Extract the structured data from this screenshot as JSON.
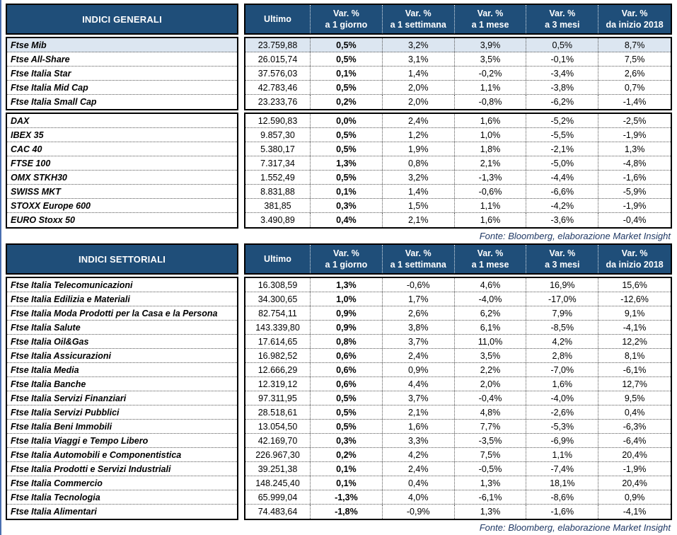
{
  "source_note": "Fonte: Bloomberg, elaborazione Market Insight",
  "column_headers": {
    "ultimo": "Ultimo",
    "var_label": "Var. %",
    "periods": [
      "a 1 giorno",
      "a 1 settimana",
      "a 1 mese",
      "a 3 mesi",
      "da inizio 2018"
    ]
  },
  "colors": {
    "header_bg": "#1f4e79",
    "highlight_row": "#dce6f1",
    "page_edge": "#4a6fb0",
    "source_text": "#1f3864"
  },
  "tables": [
    {
      "title": "INDICI GENERALI",
      "groups": [
        {
          "rows": [
            {
              "label": "Ftse Mib",
              "highlight": true,
              "values": [
                "23.759,88",
                "0,5%",
                "3,2%",
                "3,9%",
                "0,5%",
                "8,7%"
              ]
            },
            {
              "label": "Ftse All-Share",
              "values": [
                "26.015,74",
                "0,5%",
                "3,1%",
                "3,5%",
                "-0,1%",
                "7,5%"
              ]
            },
            {
              "label": "Ftse Italia Star",
              "values": [
                "37.576,03",
                "0,1%",
                "1,4%",
                "-0,2%",
                "-3,4%",
                "2,6%"
              ]
            },
            {
              "label": "Ftse Italia Mid Cap",
              "values": [
                "42.783,46",
                "0,5%",
                "2,0%",
                "1,1%",
                "-3,8%",
                "0,7%"
              ]
            },
            {
              "label": "Ftse Italia Small Cap",
              "values": [
                "23.233,76",
                "0,2%",
                "2,0%",
                "-0,8%",
                "-6,2%",
                "-1,4%"
              ]
            }
          ]
        },
        {
          "rows": [
            {
              "label": "DAX",
              "values": [
                "12.590,83",
                "0,0%",
                "2,4%",
                "1,6%",
                "-5,2%",
                "-2,5%"
              ]
            },
            {
              "label": "IBEX 35",
              "values": [
                "9.857,30",
                "0,5%",
                "1,2%",
                "1,0%",
                "-5,5%",
                "-1,9%"
              ]
            },
            {
              "label": "CAC 40",
              "values": [
                "5.380,17",
                "0,5%",
                "1,9%",
                "1,8%",
                "-2,1%",
                "1,3%"
              ]
            },
            {
              "label": "FTSE 100",
              "values": [
                "7.317,34",
                "1,3%",
                "0,8%",
                "2,1%",
                "-5,0%",
                "-4,8%"
              ]
            },
            {
              "label": "OMX STKH30",
              "values": [
                "1.552,49",
                "0,5%",
                "3,2%",
                "-1,3%",
                "-4,4%",
                "-1,6%"
              ]
            },
            {
              "label": "SWISS MKT",
              "values": [
                "8.831,88",
                "0,1%",
                "1,4%",
                "-0,6%",
                "-6,6%",
                "-5,9%"
              ]
            },
            {
              "label": "STOXX Europe 600",
              "values": [
                "381,85",
                "0,3%",
                "1,5%",
                "1,1%",
                "-4,2%",
                "-1,9%"
              ]
            },
            {
              "label": "EURO Stoxx 50",
              "values": [
                "3.490,89",
                "0,4%",
                "2,1%",
                "1,6%",
                "-3,6%",
                "-0,4%"
              ]
            }
          ]
        }
      ]
    },
    {
      "title": "INDICI SETTORIALI",
      "groups": [
        {
          "rows": [
            {
              "label": "Ftse Italia Telecomunicazioni",
              "values": [
                "16.308,59",
                "1,3%",
                "-0,6%",
                "4,6%",
                "16,9%",
                "15,6%"
              ]
            },
            {
              "label": "Ftse Italia Edilizia e Materiali",
              "values": [
                "34.300,65",
                "1,0%",
                "1,7%",
                "-4,0%",
                "-17,0%",
                "-12,6%"
              ]
            },
            {
              "label": "Ftse Italia Moda Prodotti per la Casa e la Persona",
              "values": [
                "82.754,11",
                "0,9%",
                "2,6%",
                "6,2%",
                "7,9%",
                "9,1%"
              ]
            },
            {
              "label": "Ftse Italia Salute",
              "values": [
                "143.339,80",
                "0,9%",
                "3,8%",
                "6,1%",
                "-8,5%",
                "-4,1%"
              ]
            },
            {
              "label": "Ftse Italia Oil&Gas",
              "values": [
                "17.614,65",
                "0,8%",
                "3,7%",
                "11,0%",
                "4,2%",
                "12,2%"
              ]
            },
            {
              "label": "Ftse Italia Assicurazioni",
              "values": [
                "16.982,52",
                "0,6%",
                "2,4%",
                "3,5%",
                "2,8%",
                "8,1%"
              ]
            },
            {
              "label": "Ftse Italia Media",
              "values": [
                "12.666,29",
                "0,6%",
                "0,9%",
                "2,2%",
                "-7,0%",
                "-6,1%"
              ]
            },
            {
              "label": "Ftse Italia Banche",
              "values": [
                "12.319,12",
                "0,6%",
                "4,4%",
                "2,0%",
                "1,6%",
                "12,7%"
              ]
            },
            {
              "label": "Ftse Italia Servizi Finanziari",
              "values": [
                "97.311,95",
                "0,5%",
                "3,7%",
                "-0,4%",
                "-4,0%",
                "9,5%"
              ]
            },
            {
              "label": "Ftse Italia Servizi Pubblici",
              "values": [
                "28.518,61",
                "0,5%",
                "2,1%",
                "4,8%",
                "-2,6%",
                "0,4%"
              ]
            },
            {
              "label": "Ftse Italia Beni Immobili",
              "values": [
                "13.054,50",
                "0,5%",
                "1,6%",
                "7,7%",
                "-5,3%",
                "-6,3%"
              ]
            },
            {
              "label": "Ftse Italia Viaggi e Tempo Libero",
              "values": [
                "42.169,70",
                "0,3%",
                "3,3%",
                "-3,5%",
                "-6,9%",
                "-6,4%"
              ]
            },
            {
              "label": "Ftse Italia Automobili e Componentistica",
              "values": [
                "226.967,30",
                "0,2%",
                "4,2%",
                "7,5%",
                "1,1%",
                "20,4%"
              ]
            },
            {
              "label": "Ftse Italia Prodotti e Servizi Industriali",
              "values": [
                "39.251,38",
                "0,1%",
                "2,4%",
                "-0,5%",
                "-7,4%",
                "-1,9%"
              ]
            },
            {
              "label": "Ftse Italia Commercio",
              "values": [
                "148.245,40",
                "0,1%",
                "0,4%",
                "1,3%",
                "18,1%",
                "20,4%"
              ]
            },
            {
              "label": "Ftse Italia Tecnologia",
              "values": [
                "65.999,04",
                "-1,3%",
                "4,0%",
                "-6,1%",
                "-8,6%",
                "0,9%"
              ]
            },
            {
              "label": "Ftse Italia Alimentari",
              "values": [
                "74.483,64",
                "-1,8%",
                "-0,9%",
                "1,3%",
                "-1,6%",
                "-4,1%"
              ]
            }
          ]
        }
      ]
    }
  ]
}
